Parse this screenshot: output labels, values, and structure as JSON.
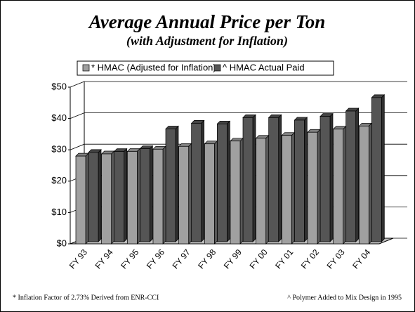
{
  "chart_data": {
    "type": "bar3d",
    "title": "Average Annual Price per Ton",
    "subtitle": "(with Adjustment for Inflation)",
    "categories": [
      "FY 93",
      "FY 94",
      "FY 95",
      "FY 96",
      "FY 97",
      "FY 98",
      "FY 99",
      "FY 00",
      "FY 01",
      "FY 02",
      "FY 03",
      "FY 04"
    ],
    "series": [
      {
        "name": "* HMAC (Adjusted for Inflation)",
        "color": "#a0a0a0",
        "values": [
          28,
          28.7,
          29.5,
          30.2,
          31.1,
          31.9,
          32.8,
          33.7,
          34.6,
          35.6,
          36.6,
          37.6
        ]
      },
      {
        "name": "^ HMAC Actual Paid",
        "color": "#555555",
        "values": [
          28.5,
          28.8,
          29.7,
          36,
          37.8,
          37.6,
          39.6,
          39.6,
          38.8,
          40,
          41.7,
          46
        ]
      }
    ],
    "ylim": [
      0,
      50
    ],
    "yticks": [
      {
        "value": 0,
        "label": "$0"
      },
      {
        "value": 10,
        "label": "$10"
      },
      {
        "value": 20,
        "label": "$20"
      },
      {
        "value": 30,
        "label": "$30"
      },
      {
        "value": 40,
        "label": "$40"
      },
      {
        "value": 50,
        "label": "$50"
      }
    ],
    "grid": true,
    "legend": "top",
    "footnotes": [
      "* Inflation Factor of 2.73% Derived from ENR-CCI",
      "^ Polymer Added to Mix Design in 1995"
    ]
  }
}
